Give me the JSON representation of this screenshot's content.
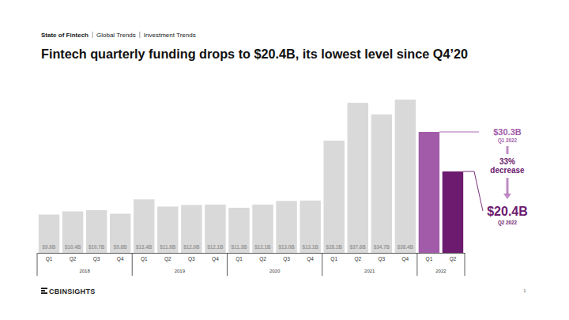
{
  "chart_data": {
    "type": "bar",
    "header": [
      "State of Fintech",
      "Global Trends",
      "Investment Trends"
    ],
    "title": "Fintech quarterly funding drops to $20.4B, its lowest level since Q4’20",
    "categories": [
      "Q1",
      "Q2",
      "Q3",
      "Q4",
      "Q1",
      "Q2",
      "Q3",
      "Q4",
      "Q1",
      "Q2",
      "Q3",
      "Q4",
      "Q1",
      "Q2",
      "Q3",
      "Q4",
      "Q1",
      "Q2"
    ],
    "groups": [
      "2018",
      "2018",
      "2018",
      "2018",
      "2019",
      "2019",
      "2019",
      "2019",
      "2020",
      "2020",
      "2020",
      "2020",
      "2021",
      "2021",
      "2021",
      "2021",
      "2022",
      "2022"
    ],
    "values": [
      9.6,
      10.4,
      10.7,
      9.8,
      13.4,
      11.6,
      12.0,
      12.1,
      11.3,
      12.1,
      13.0,
      13.1,
      28.1,
      37.6,
      34.7,
      38.4,
      30.3,
      20.4
    ],
    "value_labels": [
      "$9.6B",
      "$10.4B",
      "$10.7B",
      "$9.8B",
      "$13.4B",
      "$11.6B",
      "$12.0B",
      "$12.1B",
      "$11.3B",
      "$12.1B",
      "$13.0B",
      "$13.1B",
      "$28.1B",
      "$37.6B",
      "$34.7B",
      "$38.4B",
      "$30.3B",
      "$20.4B"
    ],
    "value_sublabels": [
      null,
      null,
      null,
      null,
      null,
      null,
      null,
      null,
      null,
      null,
      null,
      null,
      null,
      null,
      null,
      null,
      "Q1 2022",
      "Q2 2022"
    ],
    "colors": [
      "#d9d9d9",
      "#d9d9d9",
      "#d9d9d9",
      "#d9d9d9",
      "#d9d9d9",
      "#d9d9d9",
      "#d9d9d9",
      "#d9d9d9",
      "#d9d9d9",
      "#d9d9d9",
      "#d9d9d9",
      "#d9d9d9",
      "#d9d9d9",
      "#d9d9d9",
      "#d9d9d9",
      "#d9d9d9",
      "#a25ba8",
      "#6c1b6f"
    ],
    "change_label": [
      "33%",
      "decrease"
    ],
    "ylim": [
      0,
      40
    ],
    "data_labels": true,
    "tick_labels": "x",
    "logo": "CBINSIGHTS",
    "page_number": 1
  }
}
